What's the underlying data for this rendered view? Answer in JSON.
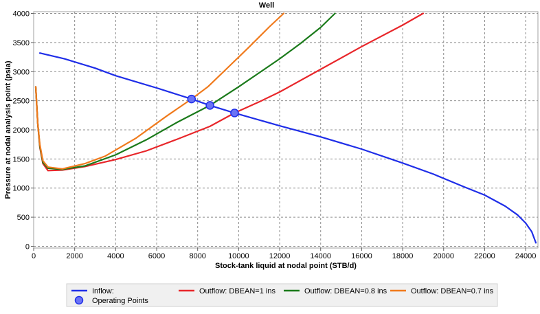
{
  "chart_data": {
    "type": "line",
    "title": "Well",
    "xlabel": "Stock-tank liquid at nodal point (STB/d)",
    "ylabel": "Pressure at nodal analysis point (psia)",
    "xlim": [
      0,
      24600
    ],
    "ylim": [
      -30,
      4030
    ],
    "x_ticks": [
      0,
      2000,
      4000,
      6000,
      8000,
      10000,
      12000,
      14000,
      16000,
      18000,
      20000,
      22000,
      24000
    ],
    "y_ticks": [
      0,
      500,
      1000,
      1500,
      2000,
      2500,
      3000,
      3500,
      4000
    ],
    "grid": true,
    "legend_position": "bottom",
    "series": [
      {
        "name": "Inflow:",
        "color": "#1f2ee8",
        "points": [
          [
            300,
            3320
          ],
          [
            1500,
            3220
          ],
          [
            3000,
            3060
          ],
          [
            4000,
            2930
          ],
          [
            6000,
            2720
          ],
          [
            7700,
            2530
          ],
          [
            8600,
            2420
          ],
          [
            9800,
            2290
          ],
          [
            12000,
            2070
          ],
          [
            14000,
            1880
          ],
          [
            16000,
            1670
          ],
          [
            18000,
            1430
          ],
          [
            19500,
            1240
          ],
          [
            21000,
            1020
          ],
          [
            22000,
            880
          ],
          [
            23000,
            690
          ],
          [
            23600,
            540
          ],
          [
            24000,
            400
          ],
          [
            24300,
            250
          ],
          [
            24500,
            60
          ]
        ]
      },
      {
        "name": "Outflow: DBEAN=1 ins",
        "color": "#e8262a",
        "points": [
          [
            100,
            2740
          ],
          [
            200,
            2100
          ],
          [
            300,
            1700
          ],
          [
            450,
            1420
          ],
          [
            700,
            1300
          ],
          [
            1400,
            1310
          ],
          [
            2500,
            1370
          ],
          [
            4000,
            1490
          ],
          [
            5500,
            1640
          ],
          [
            7000,
            1840
          ],
          [
            8600,
            2060
          ],
          [
            9800,
            2290
          ],
          [
            11000,
            2480
          ],
          [
            12000,
            2650
          ],
          [
            14000,
            3040
          ],
          [
            16000,
            3430
          ],
          [
            18000,
            3800
          ],
          [
            19000,
            4000
          ]
        ]
      },
      {
        "name": "Outflow: DBEAN=0.8 ins",
        "color": "#1a7a1a",
        "points": [
          [
            100,
            2740
          ],
          [
            200,
            2100
          ],
          [
            300,
            1720
          ],
          [
            450,
            1440
          ],
          [
            700,
            1340
          ],
          [
            1400,
            1320
          ],
          [
            2500,
            1380
          ],
          [
            4000,
            1570
          ],
          [
            5500,
            1830
          ],
          [
            7000,
            2130
          ],
          [
            8600,
            2420
          ],
          [
            10000,
            2740
          ],
          [
            11000,
            2980
          ],
          [
            12000,
            3220
          ],
          [
            13000,
            3480
          ],
          [
            14000,
            3760
          ],
          [
            14700,
            4000
          ]
        ]
      },
      {
        "name": "Outflow: DBEAN=0.7 ins",
        "color": "#f07a1c",
        "points": [
          [
            100,
            2740
          ],
          [
            200,
            2100
          ],
          [
            300,
            1750
          ],
          [
            450,
            1470
          ],
          [
            700,
            1360
          ],
          [
            1400,
            1330
          ],
          [
            2500,
            1420
          ],
          [
            3500,
            1550
          ],
          [
            5000,
            1860
          ],
          [
            6500,
            2240
          ],
          [
            7700,
            2530
          ],
          [
            8500,
            2740
          ],
          [
            9500,
            3080
          ],
          [
            10500,
            3420
          ],
          [
            11500,
            3770
          ],
          [
            12200,
            4000
          ]
        ]
      }
    ],
    "operating_points": {
      "name": "Operating Points",
      "color": "#3d46f0",
      "points": [
        [
          7700,
          2530
        ],
        [
          8600,
          2420
        ],
        [
          9800,
          2290
        ]
      ]
    }
  }
}
